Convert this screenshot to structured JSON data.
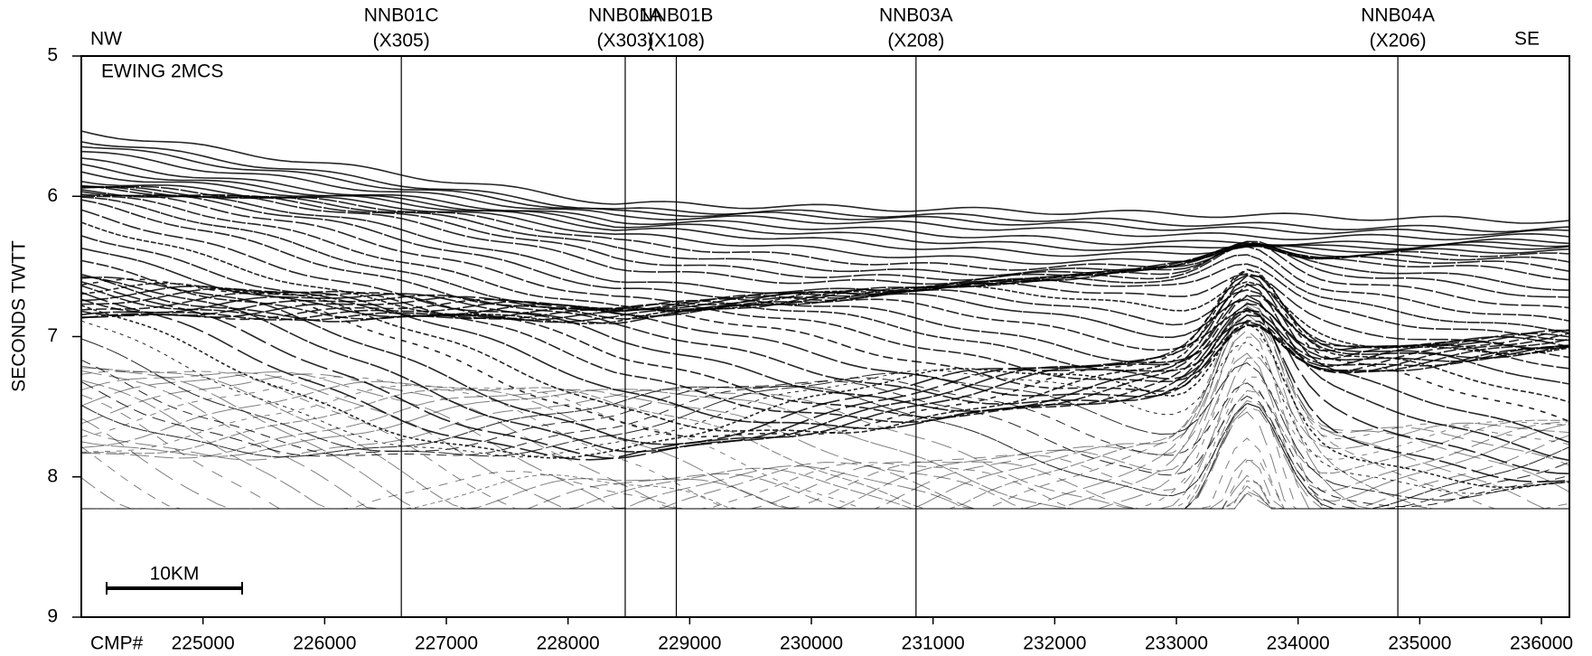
{
  "chart_data": {
    "type": "seismic-section",
    "title": "EWING 2MCS",
    "x_label": "CMP#",
    "y_label": "SECONDS TWTT",
    "xlim": [
      224000,
      236230
    ],
    "xticks": [
      225000,
      226000,
      227000,
      228000,
      229000,
      230000,
      231000,
      232000,
      233000,
      234000,
      235000,
      236000
    ],
    "ylim": [
      5,
      9
    ],
    "yticks": [
      5,
      6,
      7,
      8,
      9
    ],
    "y_inverted": true,
    "direction_labels": [
      "NW",
      "SE"
    ],
    "scale_bar": "10KM",
    "sites": [
      {
        "name": "NNB01C",
        "label": "(X305)",
        "x": 226630
      },
      {
        "name": "NNB01A",
        "label": "(X303)",
        "x": 228470
      },
      {
        "name": "NNB01B",
        "label": "(X108)",
        "x": 228890
      },
      {
        "name": "NNB03A",
        "label": "(X208)",
        "x": 230860
      },
      {
        "name": "NNB04A",
        "label": "(X206)",
        "x": 234820
      }
    ]
  }
}
